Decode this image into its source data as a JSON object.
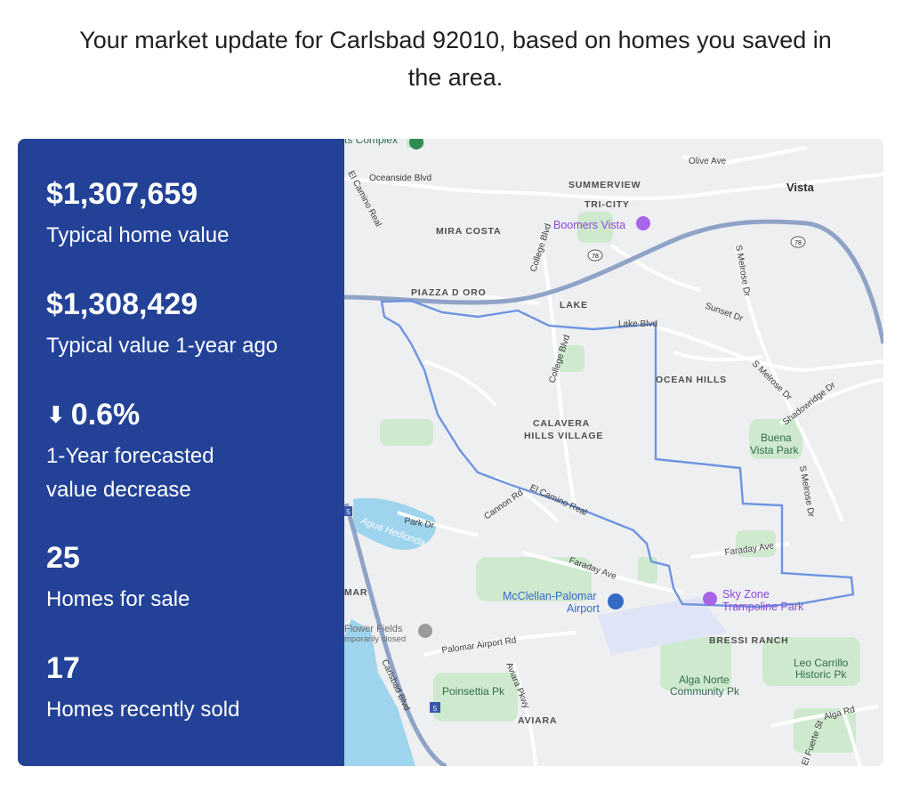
{
  "intro": {
    "line1": "Your market update for Carlsbad 92010, based on homes you saved in",
    "line2": "the area."
  },
  "stats": {
    "typical_value": {
      "value": "$1,307,659",
      "label": "Typical home value"
    },
    "value_year_ago": {
      "value": "$1,308,429",
      "label": "Typical value 1-year ago"
    },
    "forecast": {
      "arrow": "⬇",
      "value": "0.6%",
      "label_line1": "1-Year forecasted",
      "label_line2": "value decrease"
    },
    "for_sale": {
      "value": "25",
      "label": "Homes for sale"
    },
    "recently_sold": {
      "value": "17",
      "label": "Homes recently sold"
    }
  },
  "map": {
    "areas": {
      "summerview": "SUMMERVIEW",
      "tri_city": "TRI-CITY",
      "mira_costa": "MIRA COSTA",
      "piazza_d_oro": "PIAZZA D ORO",
      "lake": "LAKE",
      "ocean_hills": "OCEAN HILLS",
      "calavera_line1": "CALAVERA",
      "calavera_line2": "HILLS VILLAGE",
      "bressi_ranch": "BRESSI RANCH",
      "aviara": "AVIARA",
      "mar": "MAR"
    },
    "city": {
      "vista": "Vista"
    },
    "roads": {
      "oceanside_blvd": "Oceanside Blvd",
      "el_camino_real_top": "El Camino Real",
      "olive_ave": "Olive Ave",
      "college_blvd_top": "College Blvd",
      "college_blvd_mid": "College Blvd",
      "s_melrose_top": "S Melrose Dr",
      "sunset_dr": "Sunset Dr",
      "lake_blvd": "Lake Blvd",
      "s_melrose_mid": "S Melrose Dr",
      "shadowridge_dr": "Shadowridge Dr",
      "s_melrose_low": "S Melrose Dr",
      "el_camino_real_mid": "El Camino Real",
      "cannon_rd": "Cannon Rd",
      "park_dr": "Park Dr",
      "faraday_ave_left": "Faraday Ave",
      "faraday_ave_right": "Faraday Ave",
      "palomar_airport_rd": "Palomar Airport Rd",
      "aviara_pkwy": "Aviara Pkwy",
      "carlsbad_blvd": "Carlsbad Blvd",
      "alga_rd": "Alga Rd",
      "el_fuerte_st": "El Fuerte St",
      "hwy_78_a": "78",
      "hwy_78_b": "78",
      "i5_a": "5",
      "i5_b": "5"
    },
    "pois": {
      "boomers": "Boomers Vista",
      "buena_vista_line1": "Buena",
      "buena_vista_line2": "Vista Park",
      "mcclellan_line1": "McClellan-Palomar",
      "mcclellan_line2": "Airport",
      "sky_zone_line1": "Sky Zone",
      "sky_zone_line2": "Trampoline Park",
      "flower_fields_line1": "Flower Fields",
      "flower_fields_line2": "mporarily closed",
      "leo_carrillo_line1": "Leo Carrillo",
      "leo_carrillo_line2": "Historic Pk",
      "alga_norte_line1": "Alga Norte",
      "alga_norte_line2": "Community Pk",
      "poinsettia": "Poinsettia Pk",
      "agua_hedionda": "Agua Hedionda",
      "sports_complex": "ts Complex"
    },
    "colors": {
      "boundary": "#6f95e0",
      "panel": "#234297",
      "water": "#9fd4ee",
      "park": "#cde8cd"
    }
  }
}
